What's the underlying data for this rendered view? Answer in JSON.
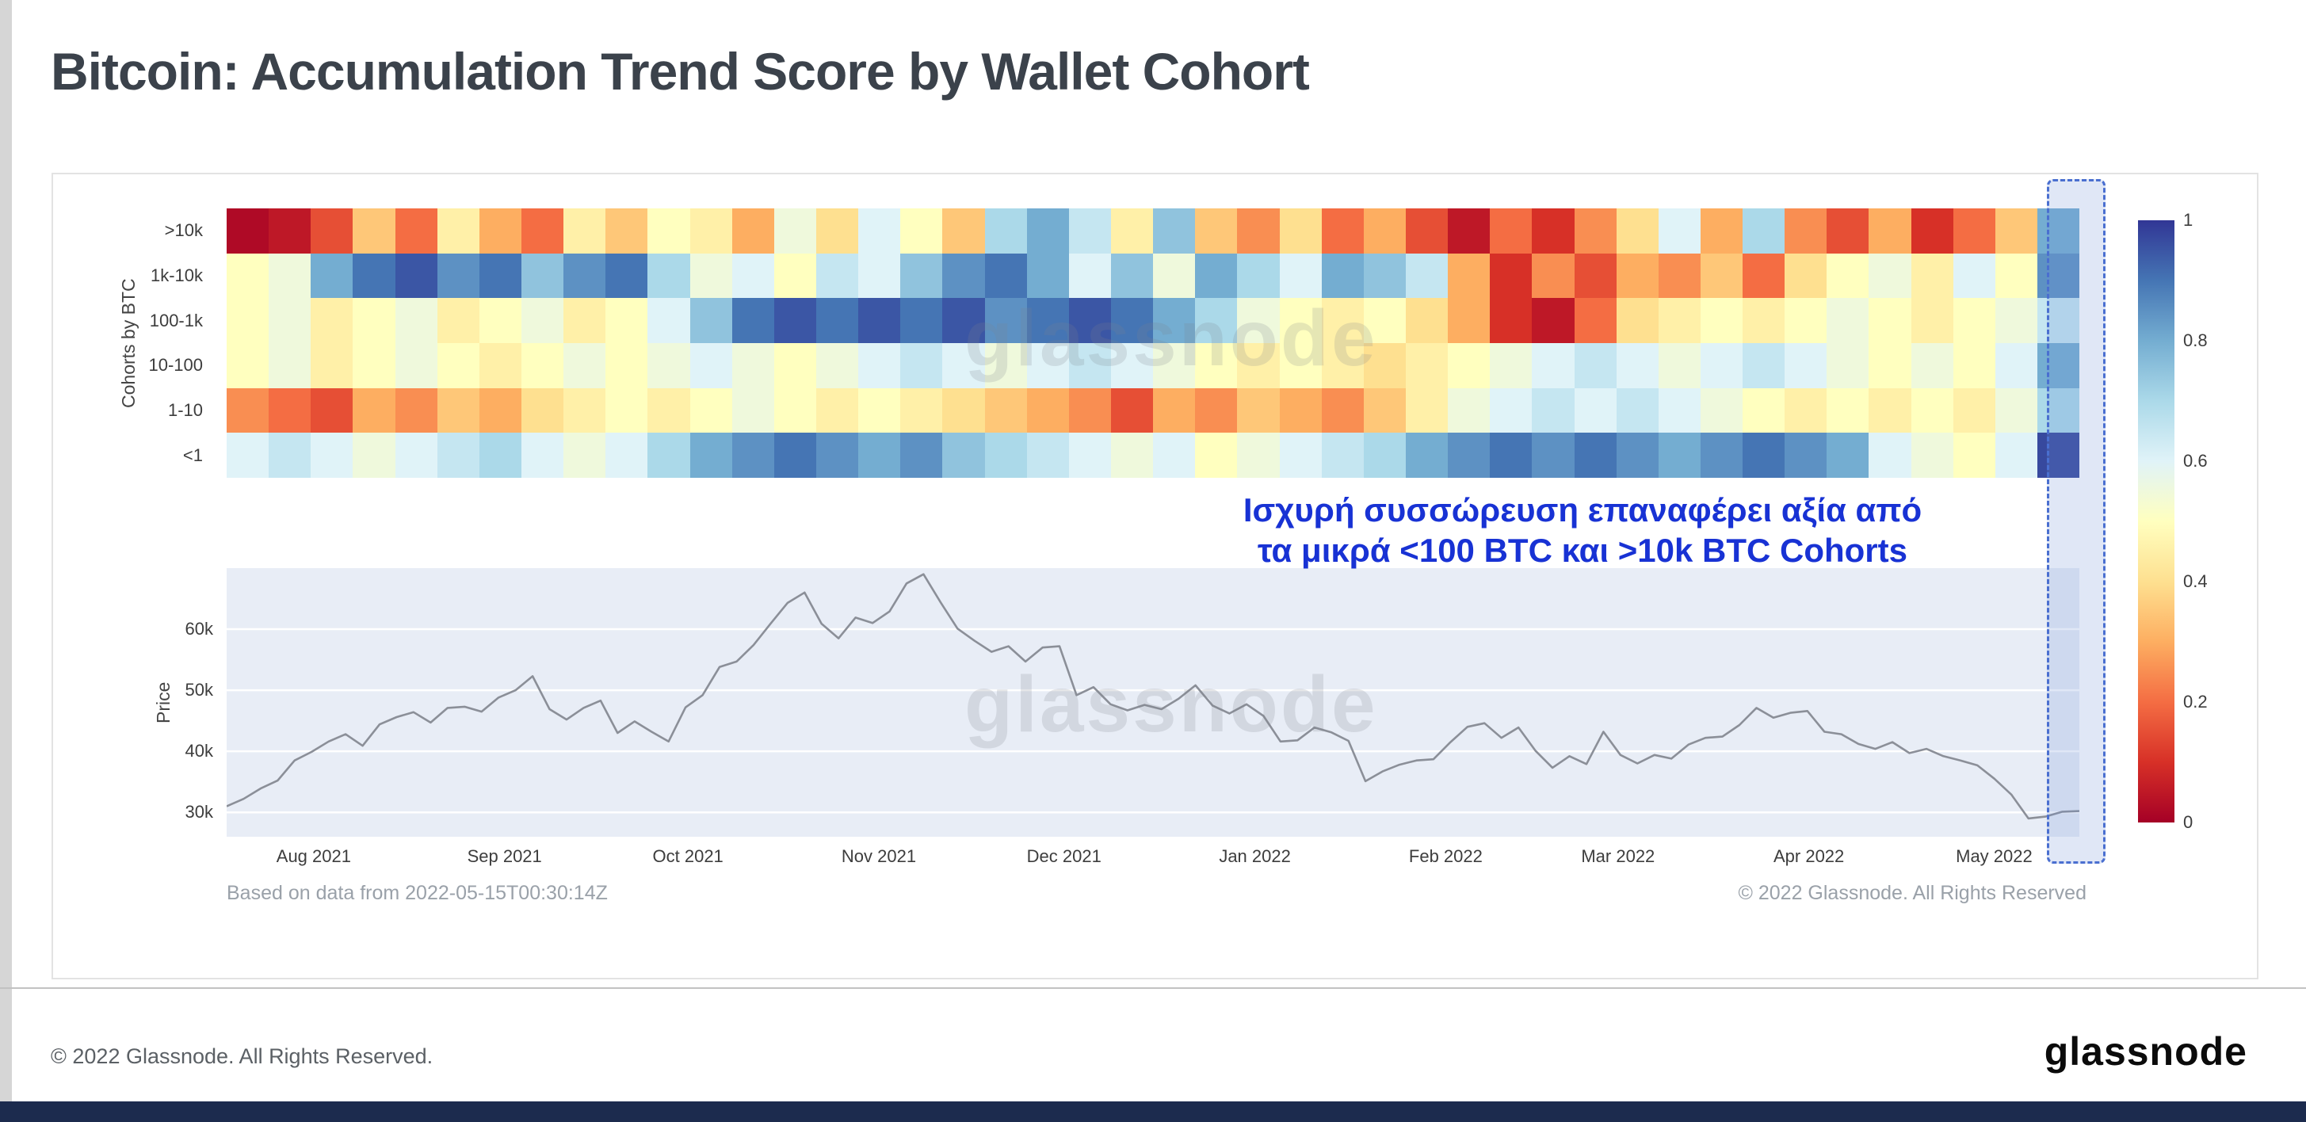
{
  "page": {
    "title": "Bitcoin: Accumulation Trend Score by Wallet Cohort",
    "footer_copyright": "© 2022 Glassnode. All Rights Reserved.",
    "brand_logo_text": "glassnode"
  },
  "card": {
    "based_on_text": "Based on data from 2022-05-15T00:30:14Z",
    "copyright_text": "© 2022 Glassnode. All Rights Reserved",
    "watermark_text": "glassnode"
  },
  "annotation": {
    "line1": "Ισχυρή συσσώρευση  επαναφέρει αξία από",
    "line2": "τα μικρά <100 BTC και >10k BTC Cohorts"
  },
  "colors": {
    "bottom_bar": "#1c2b4e",
    "highlight_border": "#4a6fd0",
    "highlight_fill": "rgba(116,146,216,0.22)",
    "price_line": "#8b8f98",
    "price_plot_bg": "#e8edf6",
    "annotation_text": "#1832d4"
  },
  "chart_data": [
    {
      "type": "heatmap",
      "ylabel": "Cohorts by BTC",
      "categories_y": [
        ">10k",
        "1k-10k",
        "100-1k",
        "10-100",
        "1-10",
        "<1"
      ],
      "x_span": [
        "Jul 2021",
        "May 2022"
      ],
      "value_range": [
        0,
        1
      ],
      "colorscale_stops": [
        [
          0,
          "#a50026"
        ],
        [
          0.1,
          "#d73027"
        ],
        [
          0.2,
          "#f46d43"
        ],
        [
          0.3,
          "#fdae61"
        ],
        [
          0.4,
          "#fee090"
        ],
        [
          0.5,
          "#ffffbf"
        ],
        [
          0.6,
          "#e0f3f8"
        ],
        [
          0.7,
          "#abd9e9"
        ],
        [
          0.8,
          "#74add1"
        ],
        [
          0.9,
          "#4575b4"
        ],
        [
          1,
          "#313695"
        ]
      ],
      "colorbar": {
        "ticks": [
          "1",
          "0.8",
          "0.6",
          "0.4",
          "0.2",
          "0"
        ],
        "values": [
          1,
          0.8,
          0.6,
          0.4,
          0.2,
          0
        ]
      },
      "highlight_region": "mid-May 2022 (final column, dashed blue box)",
      "series": [
        {
          "name": ">10k",
          "values": [
            0.02,
            0.05,
            0.15,
            0.35,
            0.2,
            0.45,
            0.3,
            0.2,
            0.45,
            0.35,
            0.5,
            0.45,
            0.3,
            0.55,
            0.4,
            0.6,
            0.5,
            0.35,
            0.7,
            0.8,
            0.65,
            0.45,
            0.75,
            0.35,
            0.25,
            0.4,
            0.2,
            0.3,
            0.15,
            0.05,
            0.2,
            0.1,
            0.25,
            0.4,
            0.6,
            0.3,
            0.7,
            0.25,
            0.15,
            0.3,
            0.1,
            0.2,
            0.35,
            0.8
          ]
        },
        {
          "name": "1k-10k",
          "values": [
            0.5,
            0.55,
            0.8,
            0.9,
            0.95,
            0.85,
            0.9,
            0.75,
            0.85,
            0.9,
            0.7,
            0.55,
            0.6,
            0.5,
            0.65,
            0.6,
            0.75,
            0.85,
            0.9,
            0.8,
            0.6,
            0.75,
            0.55,
            0.8,
            0.7,
            0.6,
            0.8,
            0.75,
            0.65,
            0.3,
            0.1,
            0.25,
            0.15,
            0.3,
            0.25,
            0.35,
            0.2,
            0.4,
            0.5,
            0.55,
            0.45,
            0.6,
            0.5,
            0.85
          ]
        },
        {
          "name": "100-1k",
          "values": [
            0.5,
            0.55,
            0.45,
            0.5,
            0.55,
            0.45,
            0.5,
            0.55,
            0.45,
            0.5,
            0.6,
            0.75,
            0.9,
            0.95,
            0.9,
            0.95,
            0.9,
            0.95,
            0.85,
            0.9,
            0.95,
            0.9,
            0.8,
            0.7,
            0.55,
            0.5,
            0.45,
            0.5,
            0.4,
            0.3,
            0.1,
            0.05,
            0.2,
            0.4,
            0.45,
            0.5,
            0.45,
            0.5,
            0.55,
            0.5,
            0.45,
            0.5,
            0.55,
            0.65
          ]
        },
        {
          "name": "10-100",
          "values": [
            0.5,
            0.55,
            0.45,
            0.5,
            0.55,
            0.5,
            0.45,
            0.5,
            0.55,
            0.5,
            0.55,
            0.6,
            0.55,
            0.5,
            0.55,
            0.6,
            0.65,
            0.6,
            0.55,
            0.6,
            0.65,
            0.6,
            0.55,
            0.5,
            0.45,
            0.5,
            0.45,
            0.4,
            0.45,
            0.5,
            0.55,
            0.6,
            0.65,
            0.6,
            0.55,
            0.6,
            0.65,
            0.6,
            0.55,
            0.5,
            0.55,
            0.5,
            0.6,
            0.8
          ]
        },
        {
          "name": "1-10",
          "values": [
            0.25,
            0.2,
            0.15,
            0.3,
            0.25,
            0.35,
            0.3,
            0.4,
            0.45,
            0.5,
            0.45,
            0.5,
            0.55,
            0.5,
            0.45,
            0.5,
            0.45,
            0.4,
            0.35,
            0.3,
            0.25,
            0.15,
            0.3,
            0.25,
            0.35,
            0.3,
            0.25,
            0.35,
            0.45,
            0.55,
            0.6,
            0.65,
            0.6,
            0.65,
            0.6,
            0.55,
            0.5,
            0.45,
            0.5,
            0.45,
            0.5,
            0.45,
            0.55,
            0.7
          ]
        },
        {
          "name": "<1",
          "values": [
            0.6,
            0.65,
            0.6,
            0.55,
            0.6,
            0.65,
            0.7,
            0.6,
            0.55,
            0.6,
            0.7,
            0.8,
            0.85,
            0.9,
            0.85,
            0.8,
            0.85,
            0.75,
            0.7,
            0.65,
            0.6,
            0.55,
            0.6,
            0.5,
            0.55,
            0.6,
            0.65,
            0.7,
            0.8,
            0.85,
            0.9,
            0.85,
            0.9,
            0.85,
            0.8,
            0.85,
            0.9,
            0.85,
            0.8,
            0.6,
            0.55,
            0.5,
            0.6,
            0.97
          ]
        }
      ]
    },
    {
      "type": "line",
      "ylabel": "Price",
      "ylim": [
        26,
        70
      ],
      "yticks": [
        {
          "label": "30k",
          "value": 30
        },
        {
          "label": "40k",
          "value": 40
        },
        {
          "label": "50k",
          "value": 50
        },
        {
          "label": "60k",
          "value": 60
        }
      ],
      "x_ticks": [
        "Aug 2021",
        "Sep 2021",
        "Oct 2021",
        "Nov 2021",
        "Dec 2021",
        "Jan 2022",
        "Feb 2022",
        "Mar 2022",
        "Apr 2022",
        "May 2022"
      ],
      "values": [
        31.0,
        32.2,
        33.9,
        35.2,
        38.5,
        39.9,
        41.6,
        42.8,
        40.9,
        44.4,
        45.6,
        46.4,
        44.7,
        47.1,
        47.3,
        46.5,
        48.8,
        50.0,
        52.3,
        46.9,
        45.2,
        47.1,
        48.3,
        43.0,
        44.9,
        43.2,
        41.6,
        47.2,
        49.2,
        53.8,
        54.7,
        57.4,
        60.9,
        64.3,
        66.0,
        60.9,
        58.5,
        61.9,
        61.0,
        62.9,
        67.5,
        69.0,
        64.4,
        60.1,
        58.1,
        56.3,
        57.2,
        54.7,
        57.0,
        57.2,
        49.2,
        50.5,
        47.7,
        46.7,
        47.6,
        46.9,
        48.6,
        50.8,
        47.5,
        46.2,
        47.7,
        45.8,
        41.6,
        41.8,
        43.9,
        43.1,
        41.7,
        35.1,
        36.7,
        37.8,
        38.5,
        38.7,
        41.5,
        44.0,
        44.6,
        42.2,
        43.9,
        40.1,
        37.3,
        39.2,
        37.9,
        43.2,
        39.4,
        38.0,
        39.4,
        38.8,
        41.1,
        42.2,
        42.4,
        44.3,
        47.1,
        45.5,
        46.3,
        46.6,
        43.2,
        42.8,
        41.2,
        40.4,
        41.5,
        39.7,
        40.4,
        39.2,
        38.5,
        37.7,
        35.5,
        32.9,
        29.0,
        29.3,
        30.1,
        30.2
      ]
    }
  ]
}
